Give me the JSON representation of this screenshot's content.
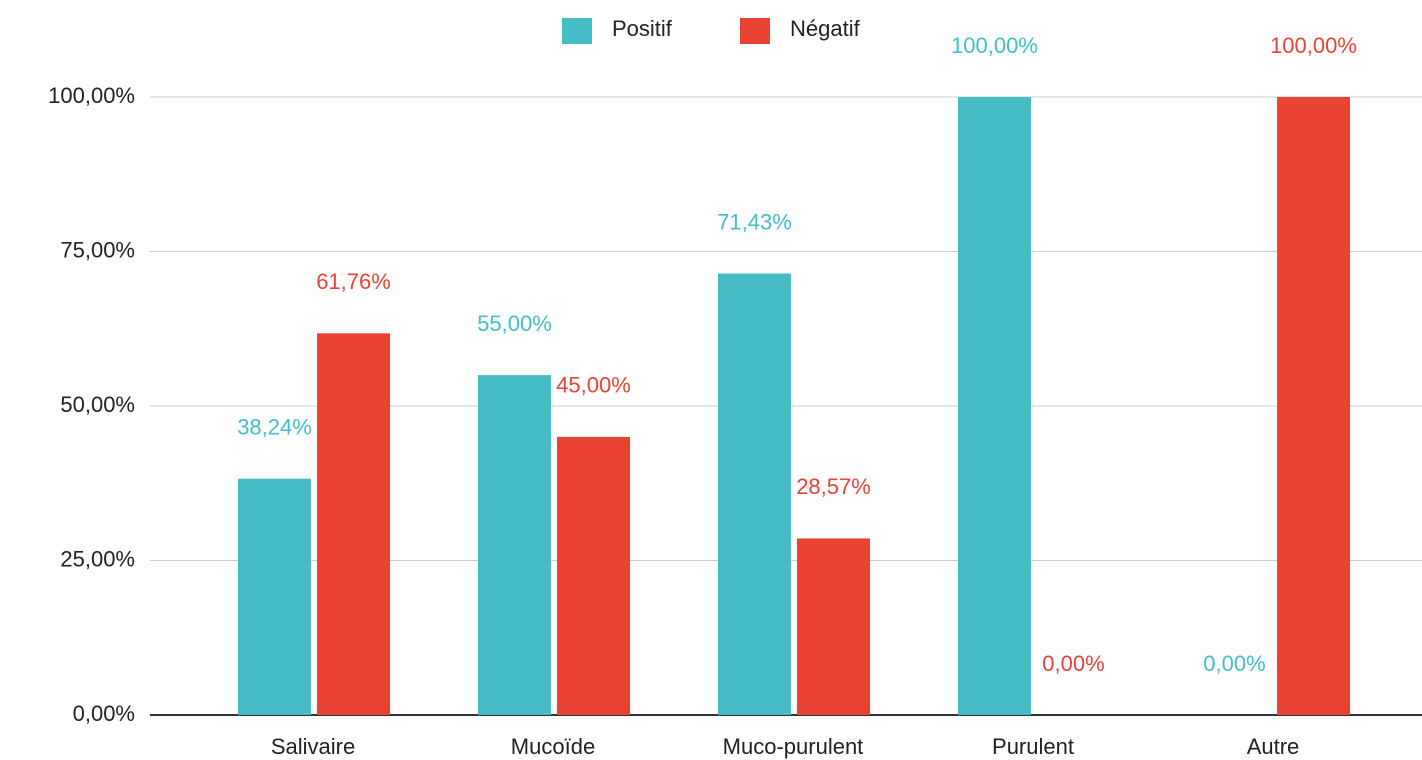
{
  "chart_data": {
    "type": "bar",
    "categories": [
      "Salivaire",
      "Mucoïde",
      "Muco-purulent",
      "Purulent",
      "Autre"
    ],
    "series": [
      {
        "name": "Positif",
        "color": "#46bdc6",
        "values": [
          38.24,
          55,
          71.43,
          100,
          0
        ],
        "value_labels": [
          "38,24%",
          "55,00%",
          "71,43%",
          "100,00%",
          "0,00%"
        ]
      },
      {
        "name": "Négatif",
        "color": "#ea4335",
        "values": [
          61.76,
          45,
          28.57,
          0,
          100
        ],
        "value_labels": [
          "61,76%",
          "45,00%",
          "28,57%",
          "0,00%",
          "100,00%"
        ]
      }
    ],
    "ylim": [
      0,
      100
    ],
    "yticks": [
      {
        "value": 0,
        "label": "0,00%"
      },
      {
        "value": 25,
        "label": "25,00%"
      },
      {
        "value": 50,
        "label": "50,00%"
      },
      {
        "value": 75,
        "label": "75,00%"
      },
      {
        "value": 100,
        "label": "100,00%"
      }
    ],
    "grid": true,
    "legend": "top"
  }
}
